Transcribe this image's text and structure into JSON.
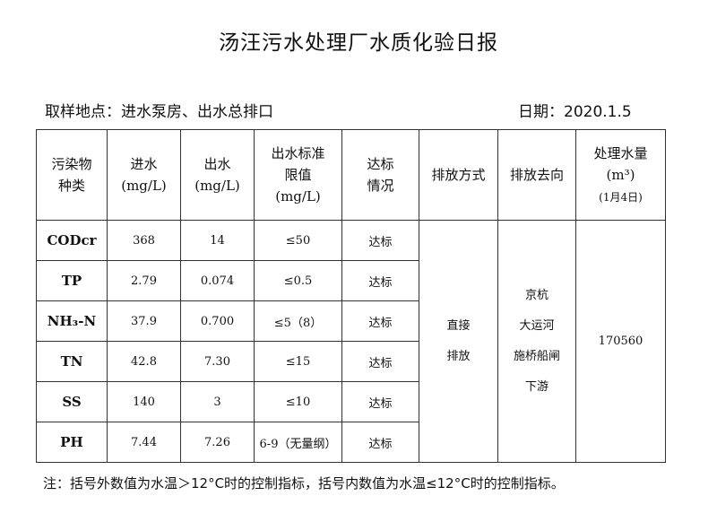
{
  "title": "汤汪污水处理厂水质化验日报",
  "location": "取样地点：进水泵房、出水总排口",
  "date": "日期：2020.1.5",
  "headers": {
    "pollutant": [
      "污染物",
      "种类"
    ],
    "influent": [
      "进水",
      "(mg/L)"
    ],
    "effluent": [
      "出水",
      "(mg/L)"
    ],
    "limit": [
      "出水标准",
      "限值",
      "(mg/L)"
    ],
    "status": [
      "达标",
      "情况"
    ],
    "discharge_method": "排放方式",
    "discharge_dest": "排放去向",
    "volume": [
      "处理水量",
      "(m³)",
      "(1月4日)"
    ]
  },
  "rows": [
    {
      "name": "CODcr",
      "in": "368",
      "out": "14",
      "limit": "≤50",
      "status": "达标"
    },
    {
      "name": "TP",
      "in": "2.79",
      "out": "0.074",
      "limit": "≤0.5",
      "status": "达标"
    },
    {
      "name": "NH₃-N",
      "in": "37.9",
      "out": "0.700",
      "limit": "≤5（8）",
      "status": "达标"
    },
    {
      "name": "TN",
      "in": "42.8",
      "out": "7.30",
      "limit": "≤15",
      "status": "达标"
    },
    {
      "name": "SS",
      "in": "140",
      "out": "3",
      "limit": "≤10",
      "status": "达标"
    },
    {
      "name": "PH",
      "in": "7.44",
      "out": "7.26",
      "limit": "6-9（无量纲）",
      "status": "达标"
    }
  ],
  "discharge_method": [
    "直接",
    "排放"
  ],
  "discharge_dest": [
    "京杭",
    "大运河",
    "施桥船闸",
    "下游"
  ],
  "volume": "170560",
  "note": "注：括号外数值为水温＞12°C时的控制指标，括号内数值为水温≤12°C时的控制指标。"
}
